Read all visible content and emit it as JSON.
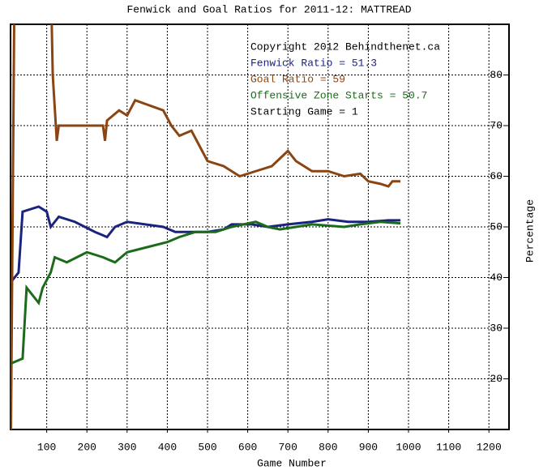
{
  "chart_data": {
    "type": "line",
    "title": "Fenwick and Goal Ratios for 2011-12: MATTREAD",
    "x_label": "Game Number",
    "y_label": "Percentage",
    "xlim": [
      10,
      1250
    ],
    "ylim": [
      10,
      90
    ],
    "xticks": [
      100,
      200,
      300,
      400,
      500,
      600,
      700,
      800,
      900,
      1000,
      1100,
      1200
    ],
    "yticks": [
      20,
      30,
      40,
      50,
      60,
      70,
      80
    ],
    "grid": true,
    "annotations": [
      {
        "text": "Copyright 2012 Behindthenet.ca",
        "color": "#000000"
      },
      {
        "text": "Fenwick Ratio = 51.3",
        "color": "#1a237e"
      },
      {
        "text": "Goal Ratio = 59",
        "color": "#8b4513"
      },
      {
        "text": "Offensive Zone Starts = 50.7",
        "color": "#1b6b1b"
      },
      {
        "text": "Starting Game = 1",
        "color": "#000000"
      }
    ],
    "series": [
      {
        "name": "Fenwick Ratio",
        "color": "#1a237e",
        "x": [
          10,
          30,
          40,
          80,
          100,
          110,
          130,
          170,
          220,
          250,
          270,
          300,
          390,
          420,
          450,
          500,
          540,
          560,
          610,
          650,
          700,
          760,
          800,
          850,
          900,
          950,
          980
        ],
        "values": [
          39,
          41,
          53,
          54,
          53,
          50,
          52,
          51,
          49,
          48,
          50,
          51,
          50,
          49,
          49,
          49,
          49.5,
          50.5,
          50.5,
          50,
          50.5,
          51,
          51.5,
          51,
          51,
          51.3,
          51.3
        ]
      },
      {
        "name": "Goal Ratio",
        "color": "#8b4513",
        "x": [
          10,
          20,
          110,
          115,
          125,
          130,
          240,
          245,
          250,
          280,
          300,
          320,
          390,
          410,
          430,
          460,
          480,
          500,
          540,
          580,
          620,
          660,
          700,
          720,
          760,
          800,
          840,
          880,
          900,
          930,
          950,
          960,
          980
        ],
        "values": [
          0,
          100,
          100,
          80,
          67,
          70,
          70,
          67,
          71,
          73,
          72,
          75,
          73,
          70,
          68,
          69,
          66,
          63,
          62,
          60,
          61,
          62,
          65,
          63,
          61,
          61,
          60,
          60.5,
          59,
          58.5,
          58,
          59,
          59
        ]
      },
      {
        "name": "Offensive Zone Starts",
        "color": "#1b6b1b",
        "x": [
          10,
          40,
          50,
          80,
          90,
          110,
          120,
          150,
          200,
          240,
          270,
          300,
          350,
          400,
          430,
          470,
          520,
          560,
          620,
          650,
          680,
          720,
          760,
          840,
          880,
          930,
          980
        ],
        "values": [
          23,
          24,
          38,
          35,
          38,
          41,
          44,
          43,
          45,
          44,
          43,
          45,
          46,
          47,
          48,
          49,
          49,
          50,
          51,
          50,
          49.5,
          50,
          50.5,
          50,
          50.5,
          51,
          50.7
        ]
      }
    ]
  }
}
